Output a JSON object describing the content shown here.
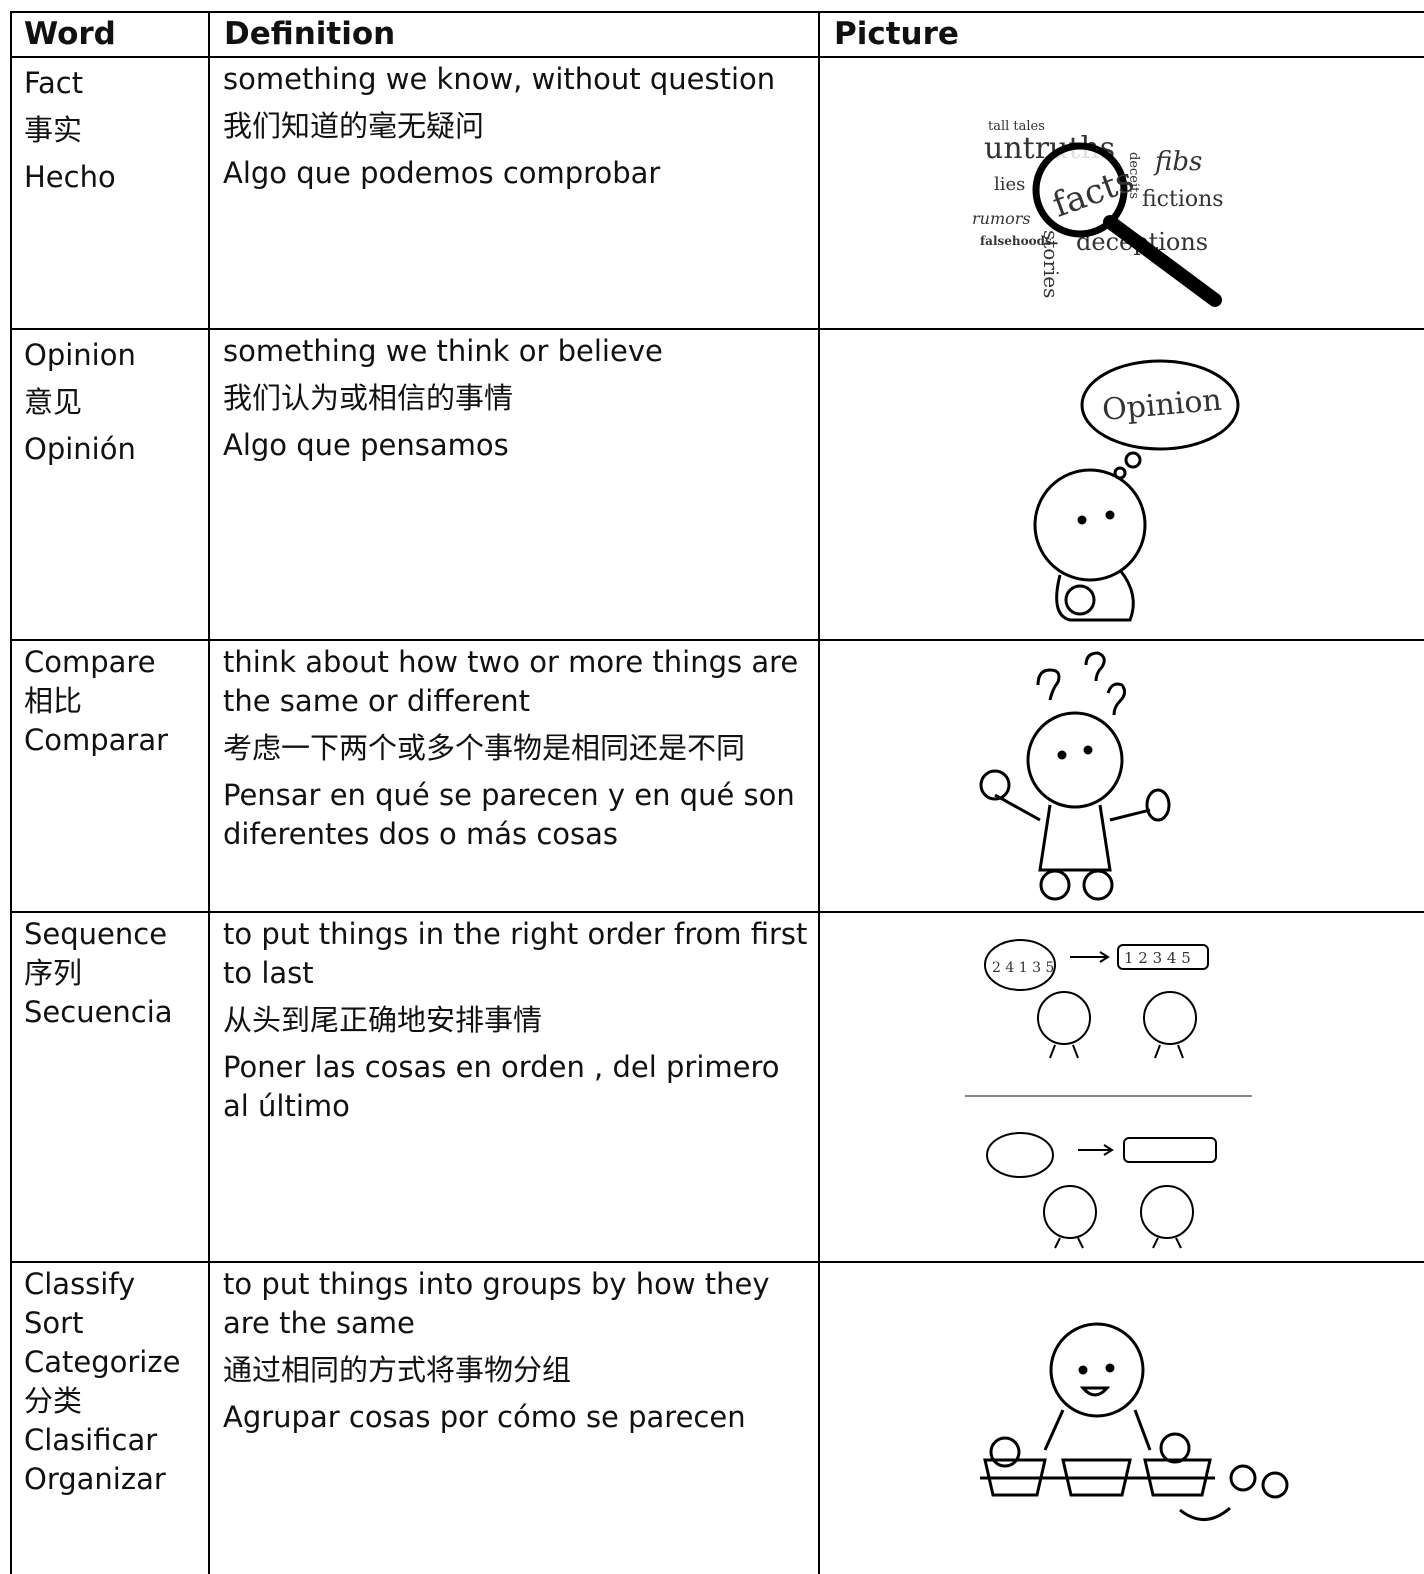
{
  "table": {
    "headers": [
      "Word",
      "Definition",
      "Picture"
    ],
    "rows": [
      {
        "word": [
          "Fact",
          "事实",
          "Hecho"
        ],
        "definition": [
          "something we know, without question",
          "我们知道的毫无疑问",
          "Algo que podemos comprobar"
        ],
        "picture": [
          "tall tales",
          "untruths",
          "deceits",
          "fibs",
          "lies",
          "facts",
          "fictions",
          "rumors",
          "falsehoods",
          "stories",
          "deceptions"
        ]
      },
      {
        "word": [
          "Opinion",
          "意见",
          "Opinión"
        ],
        "definition": [
          "something we think or believe",
          "我们认为或相信的事情",
          "Algo que pensamos"
        ],
        "picture": [
          "Opinion"
        ]
      },
      {
        "word": [
          "Compare",
          "相比",
          "Comparar"
        ],
        "definition": [
          "think about how two or more things are the same or different",
          "考虑一下两个或多个事物是相同还是不同",
          "Pensar en qué se parecen y en qué son diferentes dos o más cosas"
        ],
        "picture": []
      },
      {
        "word": [
          "Sequence",
          "序列",
          "Secuencia"
        ],
        "definition": [
          "to put things in the right order from first to last",
          "从头到尾正确地安排事情",
          "Poner las cosas en orden , del primero al último"
        ],
        "picture": [
          "2 4 1 3 5",
          "1 2 3 4 5"
        ]
      },
      {
        "word": [
          "Classify",
          "Sort",
          "Categorize",
          "分类",
          "Clasificar",
          "Organizar"
        ],
        "definition": [
          "to put things into groups by how they are the same",
          "通过相同的方式将事物分组",
          "Agrupar cosas por cómo se parecen"
        ],
        "picture": []
      }
    ]
  }
}
